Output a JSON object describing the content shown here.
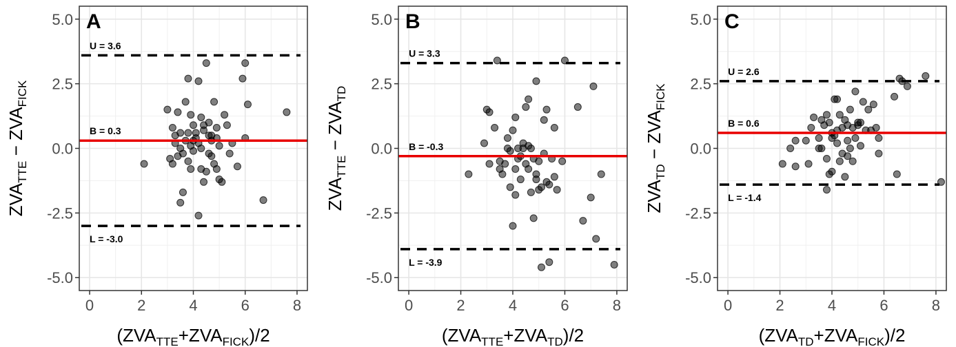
{
  "chart_data": [
    {
      "type": "scatter",
      "panel_label": "A",
      "xlabel": {
        "prefix": "(ZVA",
        "sub1": "TTE",
        "mid": "+ZVA",
        "sub2": "FICK",
        "suffix": ")/2"
      },
      "ylabel": {
        "a": "ZVA",
        "a_sub": "TTE",
        "minus": " − ",
        "b": "ZVA",
        "b_sub": "FICK"
      },
      "xlim": [
        -0.4,
        8.4
      ],
      "ylim": [
        -5.5,
        5.5
      ],
      "xticks": [
        0,
        2,
        4,
        6,
        8
      ],
      "yticks": [
        -5.0,
        -2.5,
        0.0,
        2.5,
        5.0
      ],
      "xtick_labels": [
        "0",
        "2",
        "4",
        "6",
        "8"
      ],
      "ytick_labels": [
        "-5.0",
        "-2.5",
        "0.0",
        "2.5",
        "5.0"
      ],
      "grid": true,
      "bias": {
        "value": 0.3,
        "label": "B = 0.3",
        "color": "#e80000"
      },
      "upper": {
        "value": 3.6,
        "label": "U = 3.6"
      },
      "lower": {
        "value": -3.0,
        "label": "L = -3.0"
      },
      "points": [
        [
          2.1,
          -0.6
        ],
        [
          3.0,
          1.5
        ],
        [
          3.2,
          0.8
        ],
        [
          3.4,
          1.4
        ],
        [
          3.5,
          0.6
        ],
        [
          3.7,
          1.8
        ],
        [
          3.8,
          2.7
        ],
        [
          3.9,
          1.3
        ],
        [
          4.0,
          0.9
        ],
        [
          4.1,
          0.4
        ],
        [
          4.2,
          2.6
        ],
        [
          4.3,
          1.2
        ],
        [
          4.4,
          0.7
        ],
        [
          4.5,
          3.3
        ],
        [
          4.6,
          1.0
        ],
        [
          4.7,
          0.5
        ],
        [
          4.8,
          1.8
        ],
        [
          4.9,
          0.8
        ],
        [
          5.0,
          0.1
        ],
        [
          5.2,
          1.3
        ],
        [
          5.3,
          0.9
        ],
        [
          5.5,
          0.2
        ],
        [
          5.7,
          -0.7
        ],
        [
          5.9,
          2.7
        ],
        [
          6.0,
          3.3
        ],
        [
          6.1,
          1.7
        ],
        [
          6.0,
          0.4
        ],
        [
          7.6,
          1.4
        ],
        [
          6.7,
          -2.0
        ],
        [
          3.1,
          -0.4
        ],
        [
          3.2,
          -0.6
        ],
        [
          3.3,
          0.2
        ],
        [
          3.4,
          -0.3
        ],
        [
          3.5,
          0.0
        ],
        [
          3.6,
          -0.2
        ],
        [
          3.7,
          0.3
        ],
        [
          3.8,
          -0.5
        ],
        [
          3.9,
          0.1
        ],
        [
          4.0,
          -0.1
        ],
        [
          4.1,
          0.6
        ],
        [
          4.2,
          0.2
        ],
        [
          4.3,
          -0.8
        ],
        [
          4.4,
          -1.3
        ],
        [
          4.5,
          -0.9
        ],
        [
          4.6,
          -0.2
        ],
        [
          4.7,
          0.3
        ],
        [
          4.8,
          -0.6
        ],
        [
          4.9,
          -0.8
        ],
        [
          5.0,
          -1.2
        ],
        [
          5.1,
          -1.3
        ],
        [
          4.2,
          -2.6
        ],
        [
          3.6,
          -1.7
        ],
        [
          3.5,
          -2.1
        ],
        [
          3.9,
          -0.8
        ],
        [
          4.3,
          0.0
        ],
        [
          4.6,
          0.5
        ],
        [
          4.0,
          0.3
        ],
        [
          3.3,
          0.5
        ],
        [
          3.8,
          0.6
        ],
        [
          4.4,
          0.9
        ],
        [
          4.7,
          -0.3
        ],
        [
          4.9,
          0.4
        ],
        [
          5.4,
          -0.2
        ]
      ]
    },
    {
      "type": "scatter",
      "panel_label": "B",
      "xlabel": {
        "prefix": "(ZVA",
        "sub1": "TTE",
        "mid": "+ZVA",
        "sub2": "TD",
        "suffix": ")/2"
      },
      "ylabel": {
        "a": "ZVA",
        "a_sub": "TTE",
        "minus": " − ",
        "b": "ZVA",
        "b_sub": "TD"
      },
      "xlim": [
        -0.4,
        8.4
      ],
      "ylim": [
        -5.5,
        5.5
      ],
      "xticks": [
        0,
        2,
        4,
        6,
        8
      ],
      "yticks": [
        -5.0,
        -2.5,
        0.0,
        2.5,
        5.0
      ],
      "xtick_labels": [
        "0",
        "2",
        "4",
        "6",
        "8"
      ],
      "ytick_labels": [
        "-5.0",
        "-2.5",
        "0.0",
        "2.5",
        "5.0"
      ],
      "grid": true,
      "bias": {
        "value": -0.3,
        "label": "B = -0.3",
        "color": "#e80000"
      },
      "upper": {
        "value": 3.3,
        "label": "U = 3.3"
      },
      "lower": {
        "value": -3.9,
        "label": "L = -3.9"
      },
      "points": [
        [
          2.3,
          -1.0
        ],
        [
          2.9,
          0.2
        ],
        [
          3.0,
          1.5
        ],
        [
          3.1,
          1.4
        ],
        [
          3.1,
          -0.6
        ],
        [
          3.3,
          0.8
        ],
        [
          3.4,
          3.4
        ],
        [
          3.5,
          -0.5
        ],
        [
          3.6,
          -1.0
        ],
        [
          3.7,
          -0.6
        ],
        [
          3.8,
          0.4
        ],
        [
          3.9,
          -1.5
        ],
        [
          4.0,
          0.7
        ],
        [
          4.0,
          -3.0
        ],
        [
          4.1,
          1.2
        ],
        [
          4.1,
          -0.8
        ],
        [
          4.2,
          0.0
        ],
        [
          4.3,
          -1.2
        ],
        [
          4.3,
          -0.3
        ],
        [
          4.4,
          0.2
        ],
        [
          4.5,
          1.6
        ],
        [
          4.5,
          -0.6
        ],
        [
          4.6,
          1.9
        ],
        [
          4.6,
          -0.8
        ],
        [
          4.7,
          0.0
        ],
        [
          4.7,
          -1.7
        ],
        [
          4.8,
          -2.7
        ],
        [
          4.9,
          2.6
        ],
        [
          4.9,
          -1.2
        ],
        [
          5.0,
          -0.5
        ],
        [
          5.0,
          -1.6
        ],
        [
          5.1,
          -1.5
        ],
        [
          5.1,
          -4.6
        ],
        [
          5.2,
          1.1
        ],
        [
          5.2,
          -0.2
        ],
        [
          5.3,
          1.5
        ],
        [
          5.3,
          -1.3
        ],
        [
          5.4,
          -4.4
        ],
        [
          5.5,
          -0.4
        ],
        [
          5.6,
          0.8
        ],
        [
          5.6,
          -1.1
        ],
        [
          5.7,
          -1.6
        ],
        [
          5.9,
          -0.5
        ],
        [
          6.0,
          3.4
        ],
        [
          6.5,
          1.6
        ],
        [
          6.7,
          -2.8
        ],
        [
          7.0,
          -1.9
        ],
        [
          7.1,
          2.4
        ],
        [
          7.2,
          -3.5
        ],
        [
          7.4,
          -1.0
        ],
        [
          7.9,
          -4.5
        ],
        [
          3.8,
          0.0
        ],
        [
          4.2,
          -0.4
        ],
        [
          4.4,
          0.0
        ],
        [
          3.9,
          -0.1
        ],
        [
          4.6,
          0.1
        ],
        [
          4.8,
          -0.4
        ],
        [
          4.1,
          -1.8
        ],
        [
          3.5,
          -0.8
        ],
        [
          4.9,
          -1.0
        ],
        [
          5.4,
          -1.4
        ]
      ]
    },
    {
      "type": "scatter",
      "panel_label": "C",
      "xlabel": {
        "prefix": "(ZVA",
        "sub1": "TD",
        "mid": "+ZVA",
        "sub2": "FICK",
        "suffix": ")/2"
      },
      "ylabel": {
        "a": "ZVA",
        "a_sub": "TD",
        "minus": " − ",
        "b": "ZVA",
        "b_sub": "FICK"
      },
      "xlim": [
        -0.4,
        8.4
      ],
      "ylim": [
        -5.5,
        5.5
      ],
      "xticks": [
        0,
        2,
        4,
        6,
        8
      ],
      "yticks": [
        -5.0,
        -2.5,
        0.0,
        2.5,
        5.0
      ],
      "xtick_labels": [
        "0",
        "2",
        "4",
        "6",
        "8"
      ],
      "ytick_labels": [
        "-5.0",
        "-2.5",
        "0.0",
        "2.5",
        "5.0"
      ],
      "grid": true,
      "bias": {
        "value": 0.6,
        "label": "B = 0.6",
        "color": "#e80000"
      },
      "upper": {
        "value": 2.6,
        "label": "U = 2.6"
      },
      "lower": {
        "value": -1.4,
        "label": "L = -1.4"
      },
      "points": [
        [
          2.1,
          -0.6
        ],
        [
          2.4,
          0.0
        ],
        [
          2.6,
          -0.7
        ],
        [
          2.6,
          0.3
        ],
        [
          3.0,
          0.3
        ],
        [
          3.1,
          -0.6
        ],
        [
          3.2,
          0.8
        ],
        [
          3.3,
          1.2
        ],
        [
          3.5,
          0.4
        ],
        [
          3.6,
          1.1
        ],
        [
          3.6,
          0.0
        ],
        [
          3.7,
          0.9
        ],
        [
          3.8,
          1.3
        ],
        [
          3.8,
          -0.4
        ],
        [
          3.9,
          1.0
        ],
        [
          3.9,
          -1.0
        ],
        [
          4.0,
          0.4
        ],
        [
          4.0,
          -0.9
        ],
        [
          4.1,
          1.9
        ],
        [
          4.1,
          0.5
        ],
        [
          4.2,
          1.9
        ],
        [
          4.2,
          0.2
        ],
        [
          4.3,
          1.3
        ],
        [
          4.4,
          0.8
        ],
        [
          4.4,
          -0.2
        ],
        [
          4.5,
          1.1
        ],
        [
          4.5,
          -1.1
        ],
        [
          4.6,
          0.3
        ],
        [
          4.6,
          -0.3
        ],
        [
          4.7,
          1.5
        ],
        [
          4.7,
          0.0
        ],
        [
          4.8,
          0.8
        ],
        [
          4.8,
          -0.5
        ],
        [
          4.9,
          2.2
        ],
        [
          5.0,
          0.9
        ],
        [
          5.0,
          1.0
        ],
        [
          5.1,
          1.0
        ],
        [
          5.1,
          0.1
        ],
        [
          5.2,
          1.8
        ],
        [
          5.3,
          0.7
        ],
        [
          5.4,
          1.5
        ],
        [
          5.5,
          0.7
        ],
        [
          5.6,
          1.7
        ],
        [
          5.7,
          0.8
        ],
        [
          5.8,
          0.4
        ],
        [
          5.8,
          -0.2
        ],
        [
          6.4,
          2.0
        ],
        [
          6.5,
          -1.0
        ],
        [
          6.6,
          2.7
        ],
        [
          6.7,
          2.6
        ],
        [
          6.9,
          2.4
        ],
        [
          7.6,
          2.8
        ],
        [
          8.2,
          -1.3
        ],
        [
          3.8,
          -1.6
        ],
        [
          4.0,
          0.6
        ],
        [
          4.3,
          -0.5
        ],
        [
          3.5,
          0.0
        ],
        [
          4.6,
          0.9
        ],
        [
          4.9,
          0.4
        ],
        [
          4.2,
          0.7
        ]
      ]
    }
  ]
}
